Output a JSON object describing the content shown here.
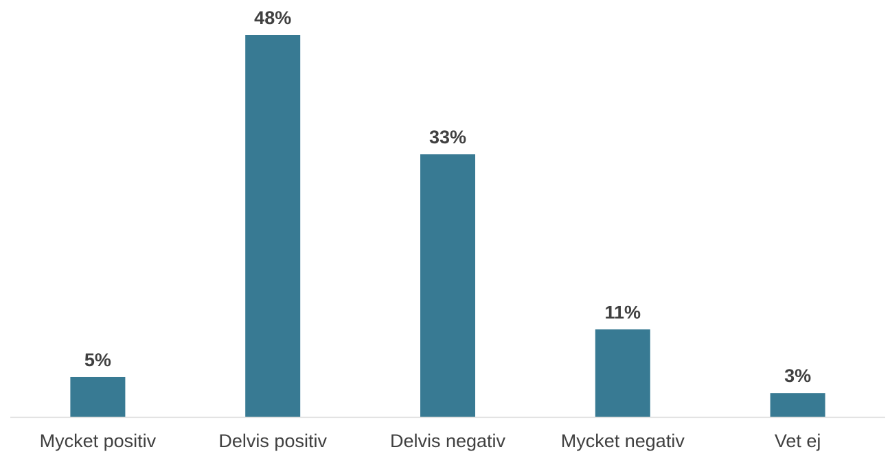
{
  "chart_data": {
    "type": "bar",
    "categories": [
      "Mycket positiv",
      "Delvis positiv",
      "Delvis negativ",
      "Mycket negativ",
      "Vet ej"
    ],
    "values": [
      5,
      48,
      33,
      11,
      3
    ],
    "value_labels": [
      "5%",
      "48%",
      "33%",
      "11%",
      "3%"
    ],
    "unit": "%",
    "ylim": [
      0,
      48
    ],
    "grid": false,
    "legend": "none",
    "colors": {
      "bar": "#387A93",
      "axis": "#D9D9D9",
      "text": "#404040"
    }
  }
}
